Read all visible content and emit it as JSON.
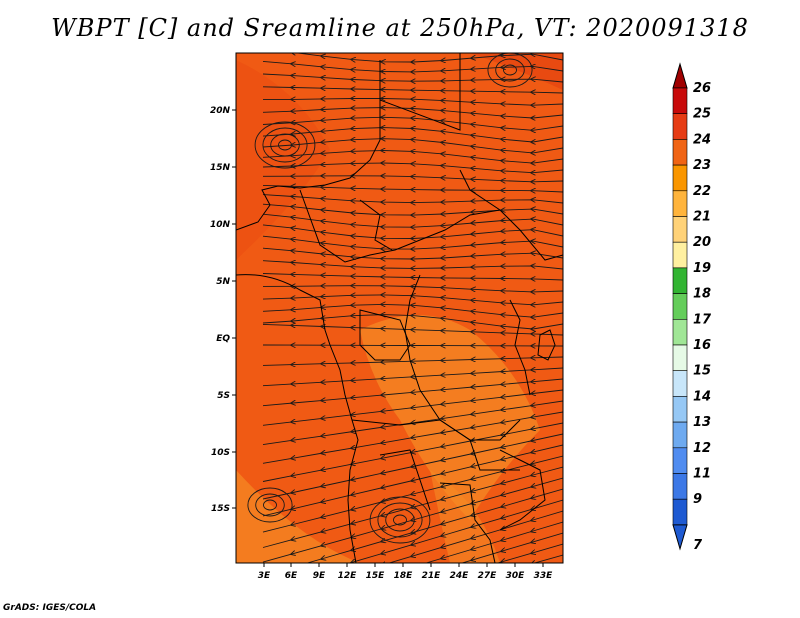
{
  "title": "WBPT [C] and Sreamline at 250hPa, VT: 2020091318",
  "footer": "GrADS: IGES/COLA",
  "map": {
    "lat_ticks": [
      "20N",
      "15N",
      "10N",
      "5N",
      "EQ",
      "5S",
      "10S",
      "15S"
    ],
    "lon_ticks": [
      "3E",
      "6E",
      "9E",
      "12E",
      "15E",
      "18E",
      "21E",
      "24E",
      "27E",
      "30E",
      "33E"
    ],
    "field_colors": {
      "dominant": "#f05a14",
      "secondary": "#f58a24",
      "deep": "#e64610"
    }
  },
  "colorbar": {
    "levels": [
      "26",
      "25",
      "24",
      "23",
      "22",
      "21",
      "20",
      "19",
      "18",
      "17",
      "16",
      "15",
      "14",
      "13",
      "12",
      "11",
      "9",
      "7"
    ],
    "colors": [
      "#a00000",
      "#c80a0a",
      "#e63c14",
      "#f06414",
      "#fa9600",
      "#ffb43c",
      "#ffd278",
      "#fff0a0",
      "#32b432",
      "#64cd5a",
      "#a0e696",
      "#e6fae6",
      "#c8e6fa",
      "#96c8f5",
      "#6eaaf0",
      "#508cf0",
      "#3c78e6",
      "#1e5ad2"
    ]
  }
}
